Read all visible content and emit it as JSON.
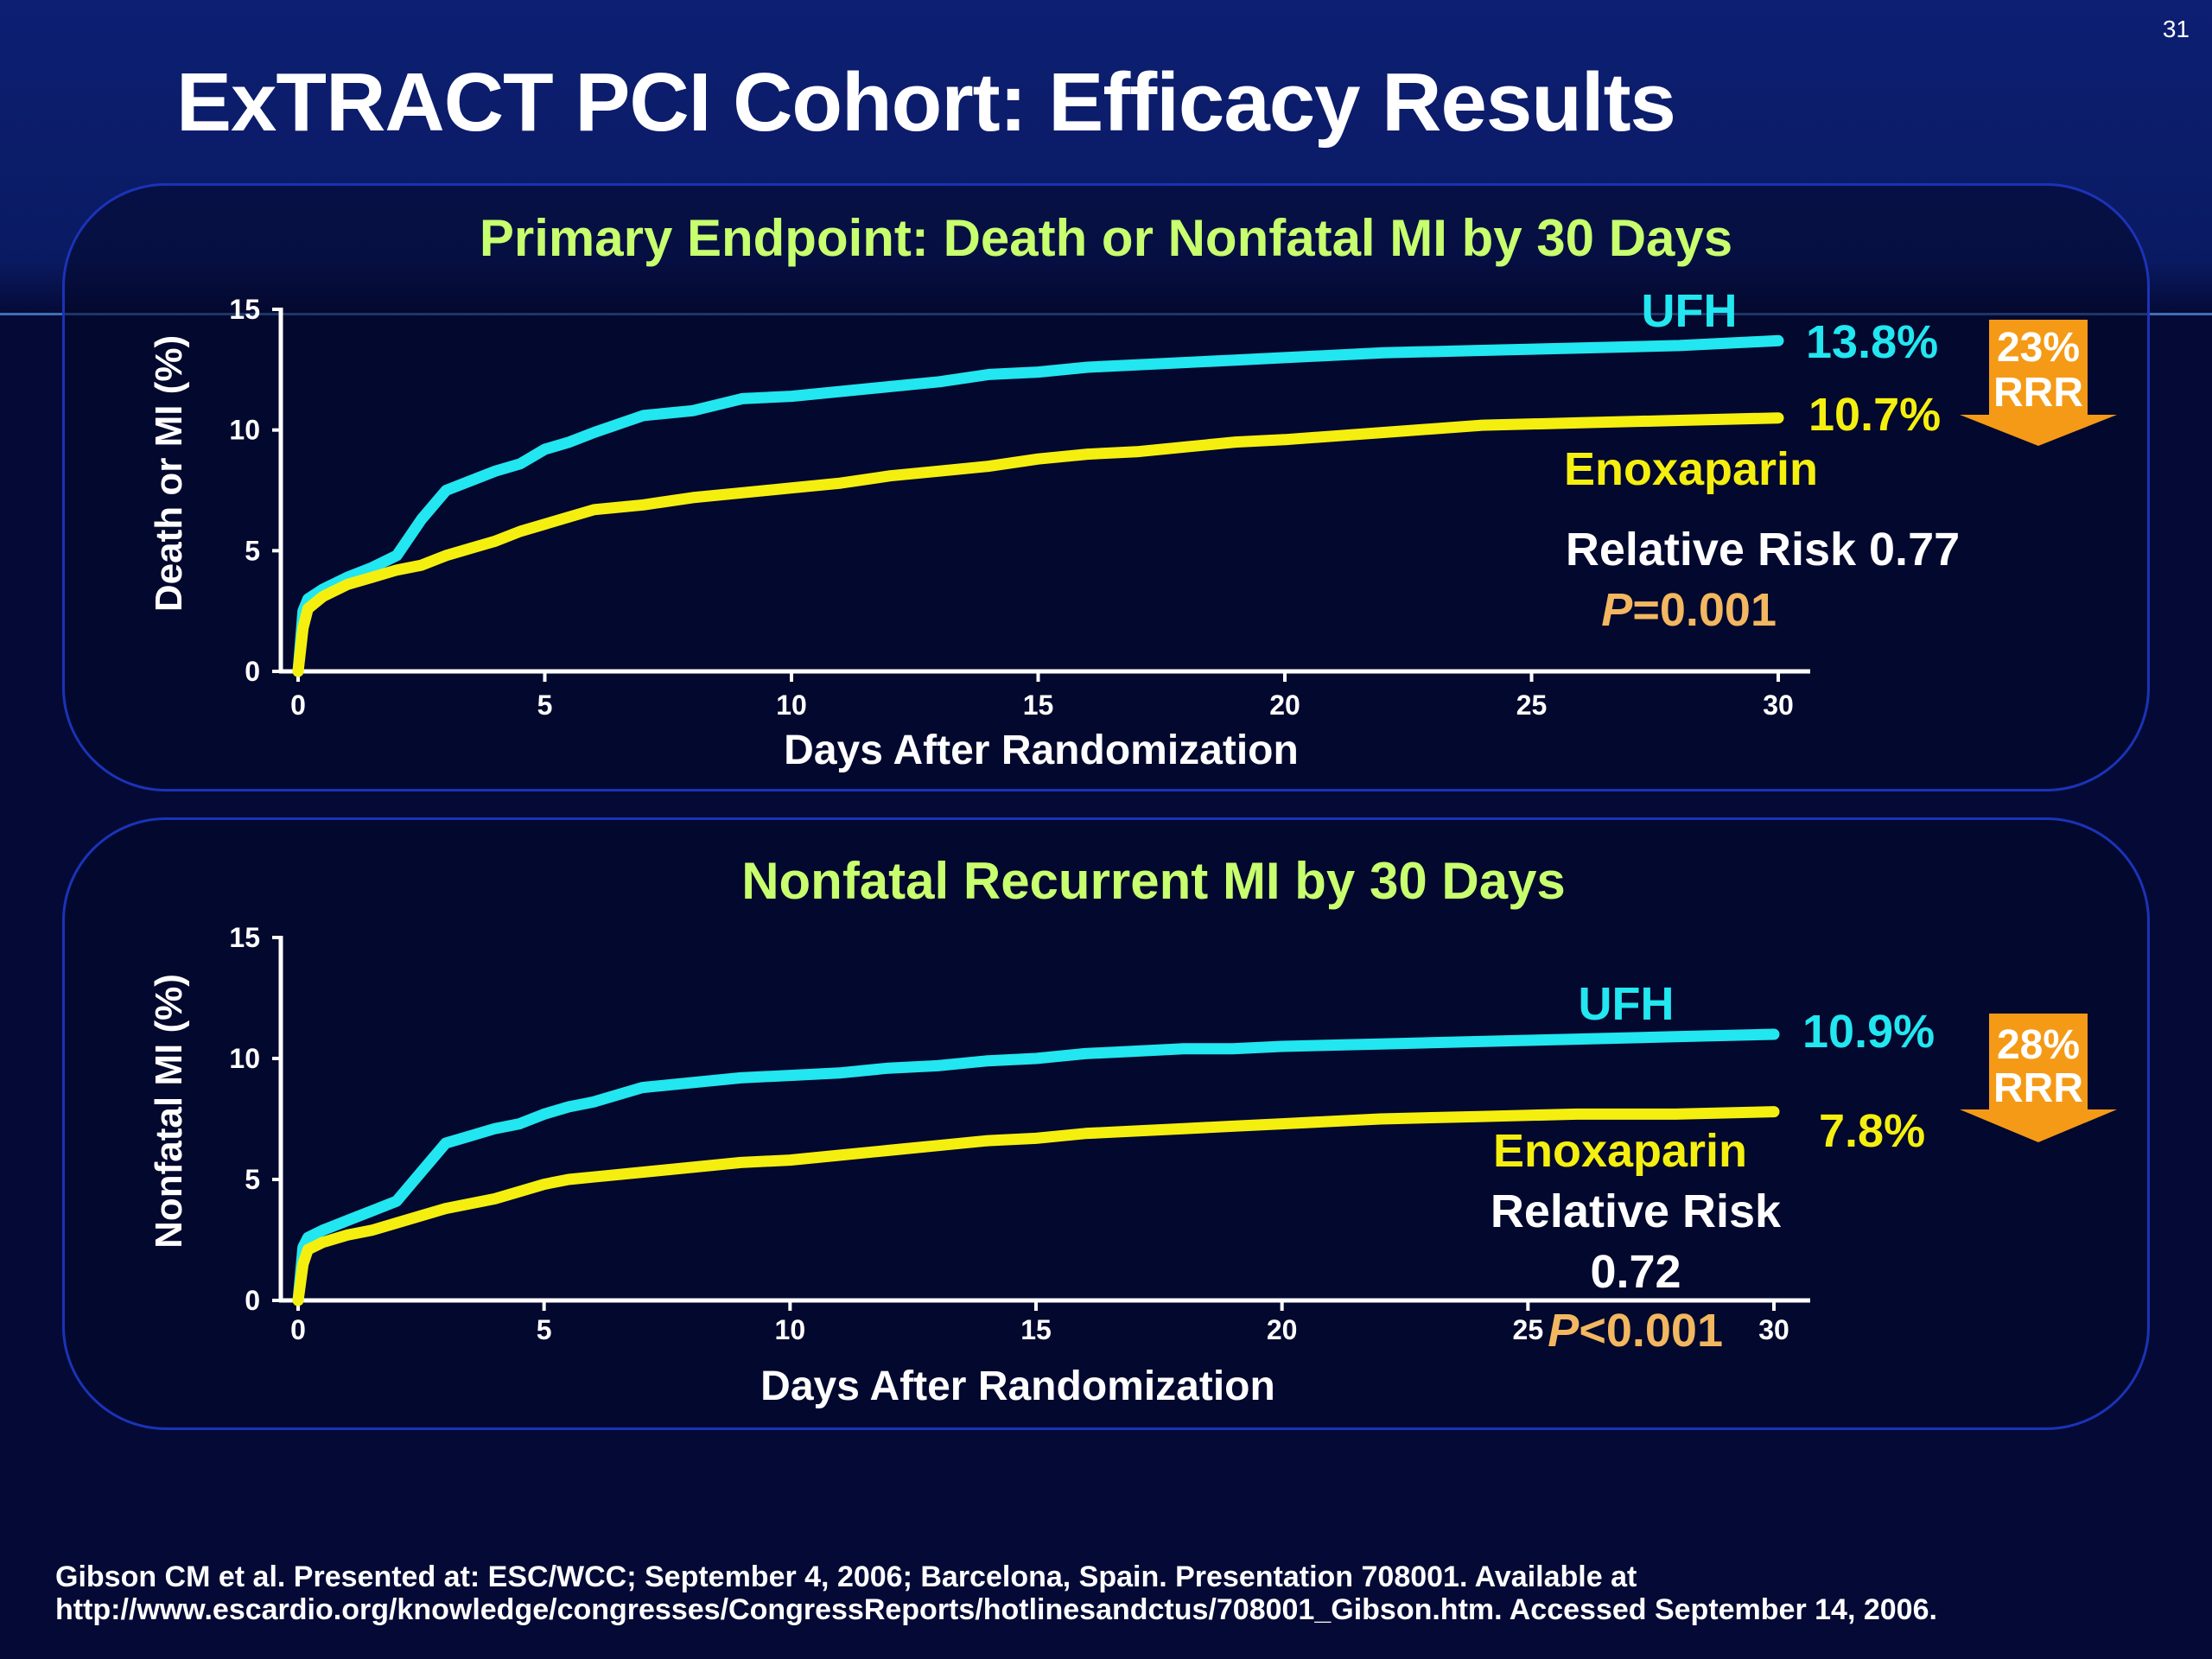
{
  "slide_number": "31",
  "title": "ExTRACT PCI Cohort: Efficacy Results",
  "footnote": {
    "line1": "Gibson CM et al. Presented at: ESC/WCC; September 4, 2006; Barcelona, Spain. Presentation 708001. Available at",
    "line2": "http://www.escardio.org/knowledge/congresses/CongressReports/hotlinesandctus/708001_Gibson.htm. Accessed September 14, 2006."
  },
  "colors": {
    "ufh": "#22e6f0",
    "enoxaparin": "#f5ef10",
    "title_green": "#c8ff6e",
    "pvalue": "#f2b760",
    "arrow": "#f59a16",
    "background": "#040a35"
  },
  "chart_data": [
    {
      "type": "line",
      "title": "Primary Endpoint: Death or Nonfatal MI by 30 Days",
      "xlabel": "Days After Randomization",
      "ylabel": "Death or MI (%)",
      "xlim": [
        0,
        30
      ],
      "ylim": [
        0,
        15
      ],
      "xticks": [
        "0",
        "5",
        "10",
        "15",
        "20",
        "25",
        "30"
      ],
      "yticks": [
        "0",
        "5",
        "10",
        "15"
      ],
      "series": [
        {
          "name": "UFH",
          "end_label": "13.8%",
          "color": "#22e6f0",
          "x": [
            0,
            0.1,
            0.2,
            0.5,
            1,
            1.5,
            2,
            2.5,
            3,
            3.5,
            4,
            4.5,
            5,
            5.5,
            6,
            7,
            8,
            9,
            10,
            11,
            12,
            13,
            14,
            15,
            16,
            17,
            18,
            19,
            20,
            22,
            24,
            26,
            28,
            30
          ],
          "y": [
            0,
            2.5,
            3.0,
            3.4,
            3.9,
            4.3,
            4.8,
            6.3,
            7.5,
            7.9,
            8.3,
            8.6,
            9.2,
            9.5,
            9.9,
            10.6,
            10.8,
            11.3,
            11.4,
            11.6,
            11.8,
            12.0,
            12.3,
            12.4,
            12.6,
            12.7,
            12.8,
            12.9,
            13.0,
            13.2,
            13.3,
            13.4,
            13.5,
            13.7
          ]
        },
        {
          "name": "Enoxaparin",
          "end_label": "10.7%",
          "color": "#f5ef10",
          "x": [
            0,
            0.1,
            0.2,
            0.5,
            1,
            1.5,
            2,
            2.5,
            3,
            3.5,
            4,
            4.5,
            5,
            5.5,
            6,
            7,
            8,
            9,
            10,
            11,
            12,
            13,
            14,
            15,
            16,
            17,
            18,
            19,
            20,
            22,
            24,
            26,
            28,
            30
          ],
          "y": [
            0,
            1.8,
            2.6,
            3.1,
            3.6,
            3.9,
            4.2,
            4.4,
            4.8,
            5.1,
            5.4,
            5.8,
            6.1,
            6.4,
            6.7,
            6.9,
            7.2,
            7.4,
            7.6,
            7.8,
            8.1,
            8.3,
            8.5,
            8.8,
            9.0,
            9.1,
            9.3,
            9.5,
            9.6,
            9.9,
            10.2,
            10.3,
            10.4,
            10.5
          ]
        }
      ],
      "annotations": {
        "relative_risk": "Relative Risk 0.77",
        "p_italic": "P",
        "p_value": "=0.001",
        "rrr_percent": "23%",
        "rrr_label": "RRR"
      }
    },
    {
      "type": "line",
      "title": "Nonfatal Recurrent MI by 30 Days",
      "xlabel": "Days After Randomization",
      "ylabel": "Nonfatal MI (%)",
      "xlim": [
        0,
        30
      ],
      "ylim": [
        0,
        15
      ],
      "xticks": [
        "0",
        "5",
        "10",
        "15",
        "20",
        "25",
        "30"
      ],
      "yticks": [
        "0",
        "5",
        "10",
        "15"
      ],
      "series": [
        {
          "name": "UFH",
          "end_label": "10.9%",
          "color": "#22e6f0",
          "x": [
            0,
            0.1,
            0.2,
            0.5,
            1,
            1.5,
            2,
            2.5,
            3,
            3.5,
            4,
            4.5,
            5,
            5.5,
            6,
            7,
            8,
            9,
            10,
            11,
            12,
            13,
            14,
            15,
            16,
            17,
            18,
            19,
            20,
            22,
            24,
            26,
            28,
            30
          ],
          "y": [
            0,
            2.2,
            2.6,
            2.9,
            3.3,
            3.7,
            4.1,
            5.3,
            6.5,
            6.8,
            7.1,
            7.3,
            7.7,
            8.0,
            8.2,
            8.8,
            9.0,
            9.2,
            9.3,
            9.4,
            9.6,
            9.7,
            9.9,
            10.0,
            10.2,
            10.3,
            10.4,
            10.4,
            10.5,
            10.6,
            10.7,
            10.8,
            10.9,
            11.0
          ]
        },
        {
          "name": "Enoxaparin",
          "end_label": "7.8%",
          "color": "#f5ef10",
          "x": [
            0,
            0.1,
            0.2,
            0.5,
            1,
            1.5,
            2,
            2.5,
            3,
            3.5,
            4,
            4.5,
            5,
            5.5,
            6,
            7,
            8,
            9,
            10,
            11,
            12,
            13,
            14,
            15,
            16,
            17,
            18,
            19,
            20,
            22,
            24,
            26,
            28,
            30
          ],
          "y": [
            0,
            1.5,
            2.1,
            2.4,
            2.7,
            2.9,
            3.2,
            3.5,
            3.8,
            4.0,
            4.2,
            4.5,
            4.8,
            5.0,
            5.1,
            5.3,
            5.5,
            5.7,
            5.8,
            6.0,
            6.2,
            6.4,
            6.6,
            6.7,
            6.9,
            7.0,
            7.1,
            7.2,
            7.3,
            7.5,
            7.6,
            7.7,
            7.7,
            7.8
          ]
        }
      ],
      "annotations": {
        "relative_risk_line1": "Relative Risk",
        "relative_risk_line2": "0.72",
        "p_italic": "P",
        "p_value": "<0.001",
        "rrr_percent": "28%",
        "rrr_label": "RRR"
      }
    }
  ]
}
